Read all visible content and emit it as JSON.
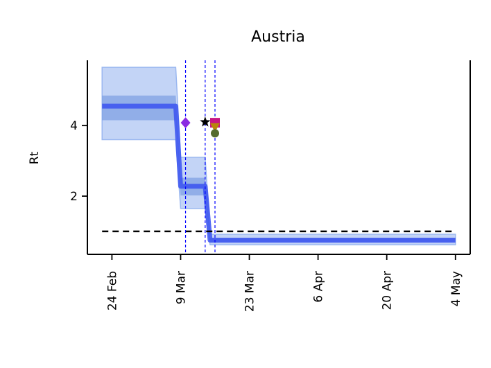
{
  "chart_data": {
    "type": "line",
    "title": "Austria",
    "xlabel": "",
    "ylabel": "Rt",
    "x_ticks": [
      "24 Feb",
      "9 Mar",
      "23 Mar",
      "6 Apr",
      "20 Apr",
      "4 May"
    ],
    "y_ticks": [
      2,
      4
    ],
    "xlim": [
      "2020-02-19",
      "2020-05-07"
    ],
    "ylim": [
      0.35,
      5.85
    ],
    "grid": false,
    "legend": "none",
    "colors": {
      "rt_line": "#3a52f0",
      "band_outer": "#9bb8f0",
      "band_inner": "#6f95e0",
      "reference_line": "#000000",
      "intervention_line": "#0000ff"
    },
    "series": [
      {
        "x": [
          "2020-02-22",
          "2020-03-08",
          "2020-03-09",
          "2020-03-14",
          "2020-03-15",
          "2020-05-04"
        ],
        "values": [
          4.55,
          4.55,
          2.28,
          2.28,
          0.75,
          0.75
        ]
      }
    ],
    "credible_interval_outer": [
      {
        "x": "2020-02-22",
        "low": 3.6,
        "high": 5.65
      },
      {
        "x": "2020-03-08",
        "low": 3.6,
        "high": 5.65
      },
      {
        "x": "2020-03-09",
        "low": 1.65,
        "high": 3.1
      },
      {
        "x": "2020-03-14",
        "low": 1.65,
        "high": 3.1
      },
      {
        "x": "2020-03-15",
        "low": 0.62,
        "high": 0.92
      },
      {
        "x": "2020-05-04",
        "low": 0.62,
        "high": 0.92
      }
    ],
    "credible_interval_inner": [
      {
        "x": "2020-02-22",
        "low": 4.15,
        "high": 4.85
      },
      {
        "x": "2020-03-08",
        "low": 4.15,
        "high": 4.85
      },
      {
        "x": "2020-03-09",
        "low": 2.02,
        "high": 2.52
      },
      {
        "x": "2020-03-14",
        "low": 2.02,
        "high": 2.52
      },
      {
        "x": "2020-03-15",
        "low": 0.7,
        "high": 0.82
      },
      {
        "x": "2020-05-04",
        "low": 0.7,
        "high": 0.82
      }
    ],
    "reference_line": {
      "y": 1.0
    },
    "intervention_dates": [
      "2020-03-10",
      "2020-03-14",
      "2020-03-16"
    ],
    "markers": [
      {
        "x": "2020-03-10",
        "y": 4.08,
        "shape": "diamond",
        "color": "#8a2be2"
      },
      {
        "x": "2020-03-14",
        "y": 4.1,
        "shape": "star",
        "color": "#000000"
      },
      {
        "x": "2020-03-16",
        "y": 4.08,
        "shape": "square",
        "color": "#c71585"
      },
      {
        "x": "2020-03-16",
        "y": 3.95,
        "shape": "triangle",
        "color": "#b8860b"
      },
      {
        "x": "2020-03-16",
        "y": 3.78,
        "shape": "circle",
        "color": "#556b2f"
      }
    ]
  }
}
